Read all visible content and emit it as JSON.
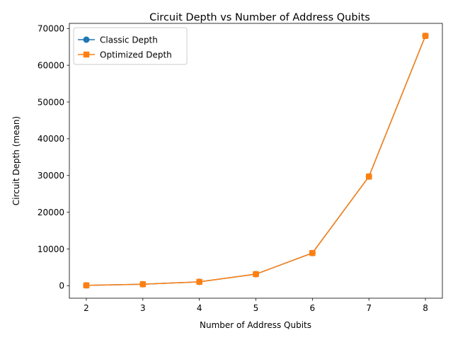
{
  "chart_data": {
    "type": "line",
    "title": "Circuit Depth vs Number of Address Qubits",
    "xlabel": "Number of Address Qubits",
    "ylabel": "Circuit Depth (mean)",
    "x": [
      2,
      3,
      4,
      5,
      6,
      7,
      8
    ],
    "xlim": [
      1.7,
      8.3
    ],
    "ylim": [
      -3400,
      71400
    ],
    "xticks": [
      2,
      3,
      4,
      5,
      6,
      7,
      8
    ],
    "yticks": [
      0,
      10000,
      20000,
      30000,
      40000,
      50000,
      60000,
      70000
    ],
    "grid": false,
    "legend": "upper-left",
    "series": [
      {
        "name": "Classic Depth",
        "color": "#1f77b4",
        "marker": "circle",
        "values": [
          100,
          400,
          1050,
          3150,
          8900,
          29700,
          68000
        ]
      },
      {
        "name": "Optimized Depth",
        "color": "#ff7f0e",
        "marker": "square",
        "values": [
          100,
          400,
          1050,
          3150,
          8900,
          29700,
          68000
        ]
      }
    ]
  }
}
